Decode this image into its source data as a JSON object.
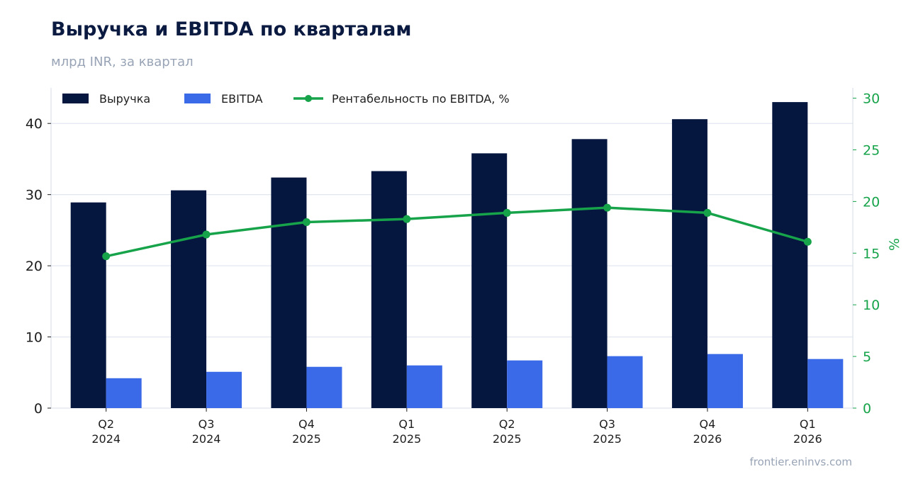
{
  "chart_data": {
    "type": "bar",
    "title": "Выручка и EBITDA по кварталам",
    "subtitle": "млрд INR, за квартал",
    "categories": [
      "Q2\n2024",
      "Q3\n2024",
      "Q4\n2025",
      "Q1\n2025",
      "Q2\n2025",
      "Q3\n2025",
      "Q4\n2026",
      "Q1\n2026"
    ],
    "series": [
      {
        "name": "Выручка",
        "type": "bar",
        "axis": "left",
        "color": "#05163f",
        "values": [
          28.9,
          30.6,
          32.4,
          33.3,
          35.8,
          37.8,
          40.6,
          43.0
        ]
      },
      {
        "name": "EBITDA",
        "type": "bar",
        "axis": "left",
        "color": "#3b6ae8",
        "values": [
          4.2,
          5.1,
          5.8,
          6.0,
          6.7,
          7.3,
          7.6,
          6.9
        ]
      },
      {
        "name": "Рентабельность по EBITDA, %",
        "type": "line",
        "axis": "right",
        "color": "#16a34a",
        "values": [
          14.7,
          16.8,
          18.0,
          18.3,
          18.9,
          19.4,
          18.9,
          16.1
        ]
      }
    ],
    "y_left": {
      "min": 0,
      "max": 45,
      "ticks": [
        0,
        10,
        20,
        30,
        40
      ]
    },
    "y_right": {
      "min": 0,
      "max": 31,
      "ticks": [
        0,
        5,
        10,
        15,
        20,
        25,
        30
      ],
      "label": "%",
      "color": "#16a34a"
    },
    "grid": true,
    "legend": "top-left",
    "source": "frontier.eninvs.com"
  }
}
